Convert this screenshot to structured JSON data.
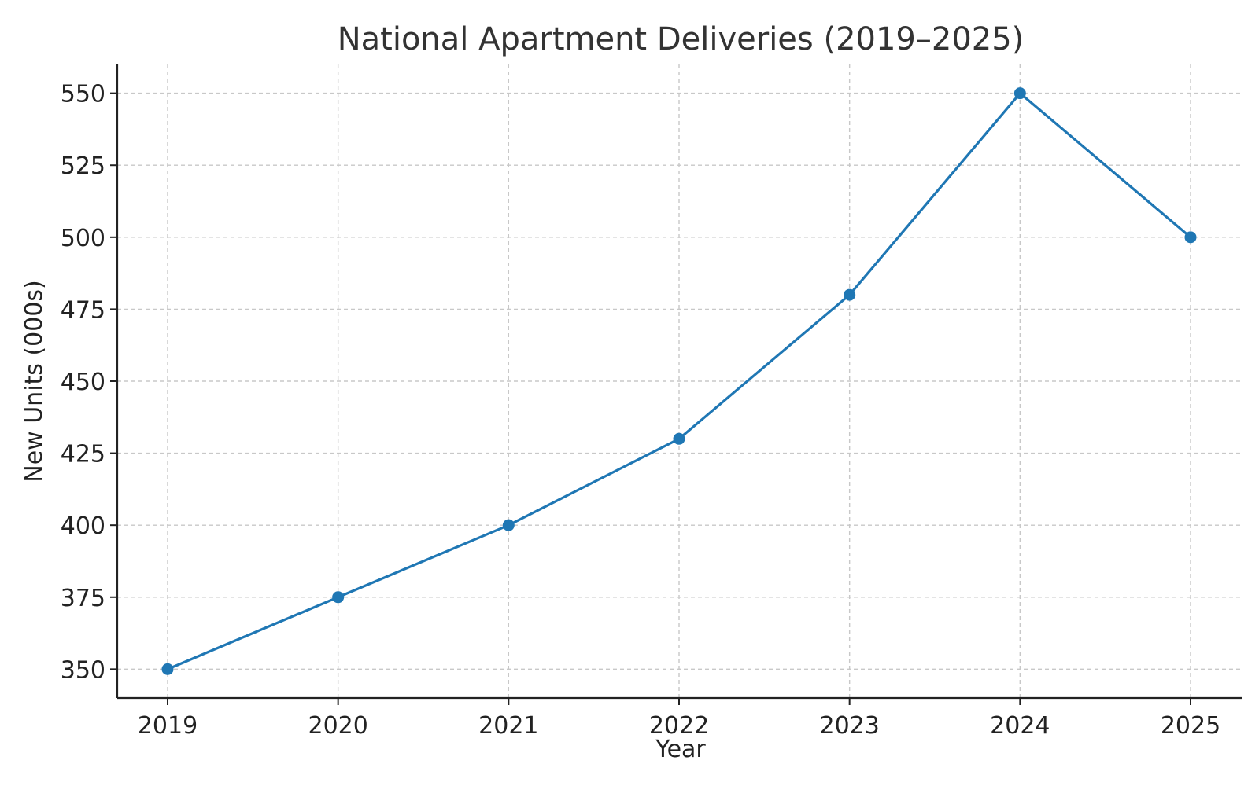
{
  "chart_data": {
    "type": "line",
    "title": "National Apartment Deliveries (2019–2025)",
    "xlabel": "Year",
    "ylabel": "New Units (000s)",
    "categories": [
      "2019",
      "2020",
      "2021",
      "2022",
      "2023",
      "2024",
      "2025"
    ],
    "series": [
      {
        "values": [
          350,
          375,
          400,
          430,
          480,
          550,
          500
        ],
        "color": "#1f77b4"
      }
    ],
    "yticks": [
      350,
      375,
      400,
      425,
      450,
      475,
      500,
      525,
      550
    ],
    "ylim": [
      340,
      560
    ],
    "grid": true,
    "marker": "circle"
  }
}
